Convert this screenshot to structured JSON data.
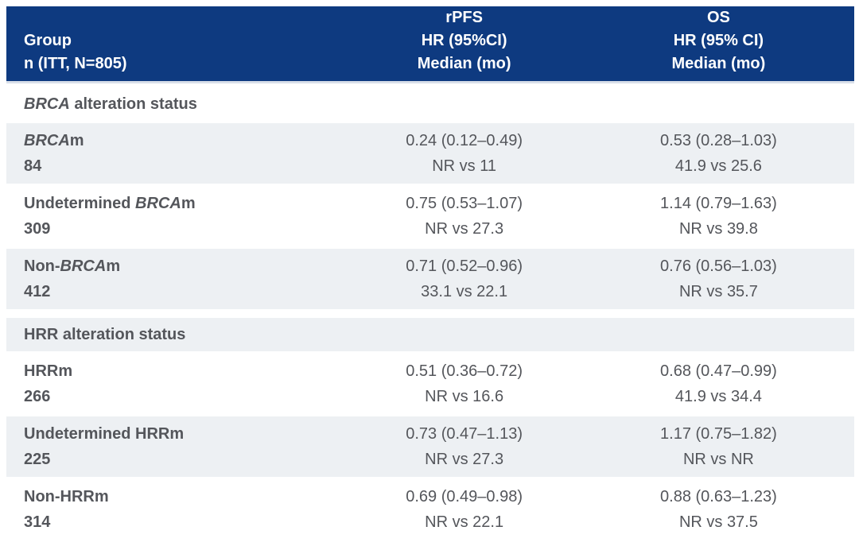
{
  "colors": {
    "header_bg": "#0e3a80",
    "header_text": "#ffffff",
    "row_alt_bg": "#edf0f3",
    "body_text": "#54565b",
    "header_underline": "#d9dfe9"
  },
  "header": {
    "col1": [
      "Group",
      "n (ITT, N=805)"
    ],
    "col2": [
      "rPFS",
      "HR (95%CI)",
      "Median (mo)"
    ],
    "col3": [
      "OS",
      "HR (95% CI)",
      "Median (mo)"
    ]
  },
  "rows": [
    {
      "type": "section",
      "label": [
        {
          "text": "BRCA",
          "italic": true
        },
        {
          "text": " alteration status",
          "italic": false
        }
      ]
    },
    {
      "type": "data",
      "group": [
        {
          "text": "BRCA",
          "italic": true
        },
        {
          "text": "m",
          "italic": false
        }
      ],
      "n": "84",
      "rpfs_hr": "0.24 (0.12–0.49)",
      "rpfs_median": "NR vs 11",
      "os_hr": "0.53 (0.28–1.03)",
      "os_median": "41.9 vs 25.6"
    },
    {
      "type": "data",
      "group": [
        {
          "text": "Undetermined ",
          "italic": false
        },
        {
          "text": "BRCA",
          "italic": true
        },
        {
          "text": "m",
          "italic": false
        }
      ],
      "n": "309",
      "rpfs_hr": "0.75 (0.53–1.07)",
      "rpfs_median": "NR vs 27.3",
      "os_hr": "1.14 (0.79–1.63)",
      "os_median": "NR vs 39.8"
    },
    {
      "type": "data",
      "group": [
        {
          "text": "Non-",
          "italic": false
        },
        {
          "text": "BRCA",
          "italic": true
        },
        {
          "text": "m",
          "italic": false
        }
      ],
      "n": "412",
      "rpfs_hr": "0.71 (0.52–0.96)",
      "rpfs_median": "33.1 vs 22.1",
      "os_hr": "0.76 (0.56–1.03)",
      "os_median": "NR vs 35.7"
    },
    {
      "type": "section",
      "label": [
        {
          "text": "HRR alteration status",
          "italic": false
        }
      ]
    },
    {
      "type": "data",
      "group": [
        {
          "text": "HRRm",
          "italic": false
        }
      ],
      "n": "266",
      "rpfs_hr": "0.51 (0.36–0.72)",
      "rpfs_median": "NR vs 16.6",
      "os_hr": "0.68 (0.47–0.99)",
      "os_median": "41.9 vs 34.4"
    },
    {
      "type": "data",
      "group": [
        {
          "text": "Undetermined HRRm",
          "italic": false
        }
      ],
      "n": "225",
      "rpfs_hr": "0.73 (0.47–1.13)",
      "rpfs_median": "NR vs 27.3",
      "os_hr": "1.17 (0.75–1.82)",
      "os_median": "NR vs NR"
    },
    {
      "type": "data",
      "group": [
        {
          "text": "Non-HRRm",
          "italic": false
        }
      ],
      "n": "314",
      "rpfs_hr": "0.69 (0.49–0.98)",
      "rpfs_median": "NR vs 22.1",
      "os_hr": "0.88 (0.63–1.23)",
      "os_median": "NR vs 37.5"
    }
  ],
  "chart_data": {
    "type": "table",
    "title": "rPFS and OS by BRCA / HRR alteration status (ITT, N=805)",
    "columns": [
      "Group",
      "n",
      "rPFS HR (95%CI)",
      "rPFS Median (mo)",
      "OS HR (95% CI)",
      "OS Median (mo)"
    ],
    "rows": [
      [
        "BRCAm",
        84,
        "0.24 (0.12–0.49)",
        "NR vs 11",
        "0.53 (0.28–1.03)",
        "41.9 vs 25.6"
      ],
      [
        "Undetermined BRCAm",
        309,
        "0.75 (0.53–1.07)",
        "NR vs 27.3",
        "1.14 (0.79–1.63)",
        "NR vs 39.8"
      ],
      [
        "Non-BRCAm",
        412,
        "0.71 (0.52–0.96)",
        "33.1 vs 22.1",
        "0.76 (0.56–1.03)",
        "NR vs 35.7"
      ],
      [
        "HRRm",
        266,
        "0.51 (0.36–0.72)",
        "NR vs 16.6",
        "0.68 (0.47–0.99)",
        "41.9 vs 34.4"
      ],
      [
        "Undetermined HRRm",
        225,
        "0.73 (0.47–1.13)",
        "NR vs 27.3",
        "1.17 (0.75–1.82)",
        "NR vs NR"
      ],
      [
        "Non-HRRm",
        314,
        "0.69 (0.49–0.98)",
        "NR vs 22.1",
        "0.88 (0.63–1.23)",
        "NR vs 37.5"
      ]
    ]
  }
}
